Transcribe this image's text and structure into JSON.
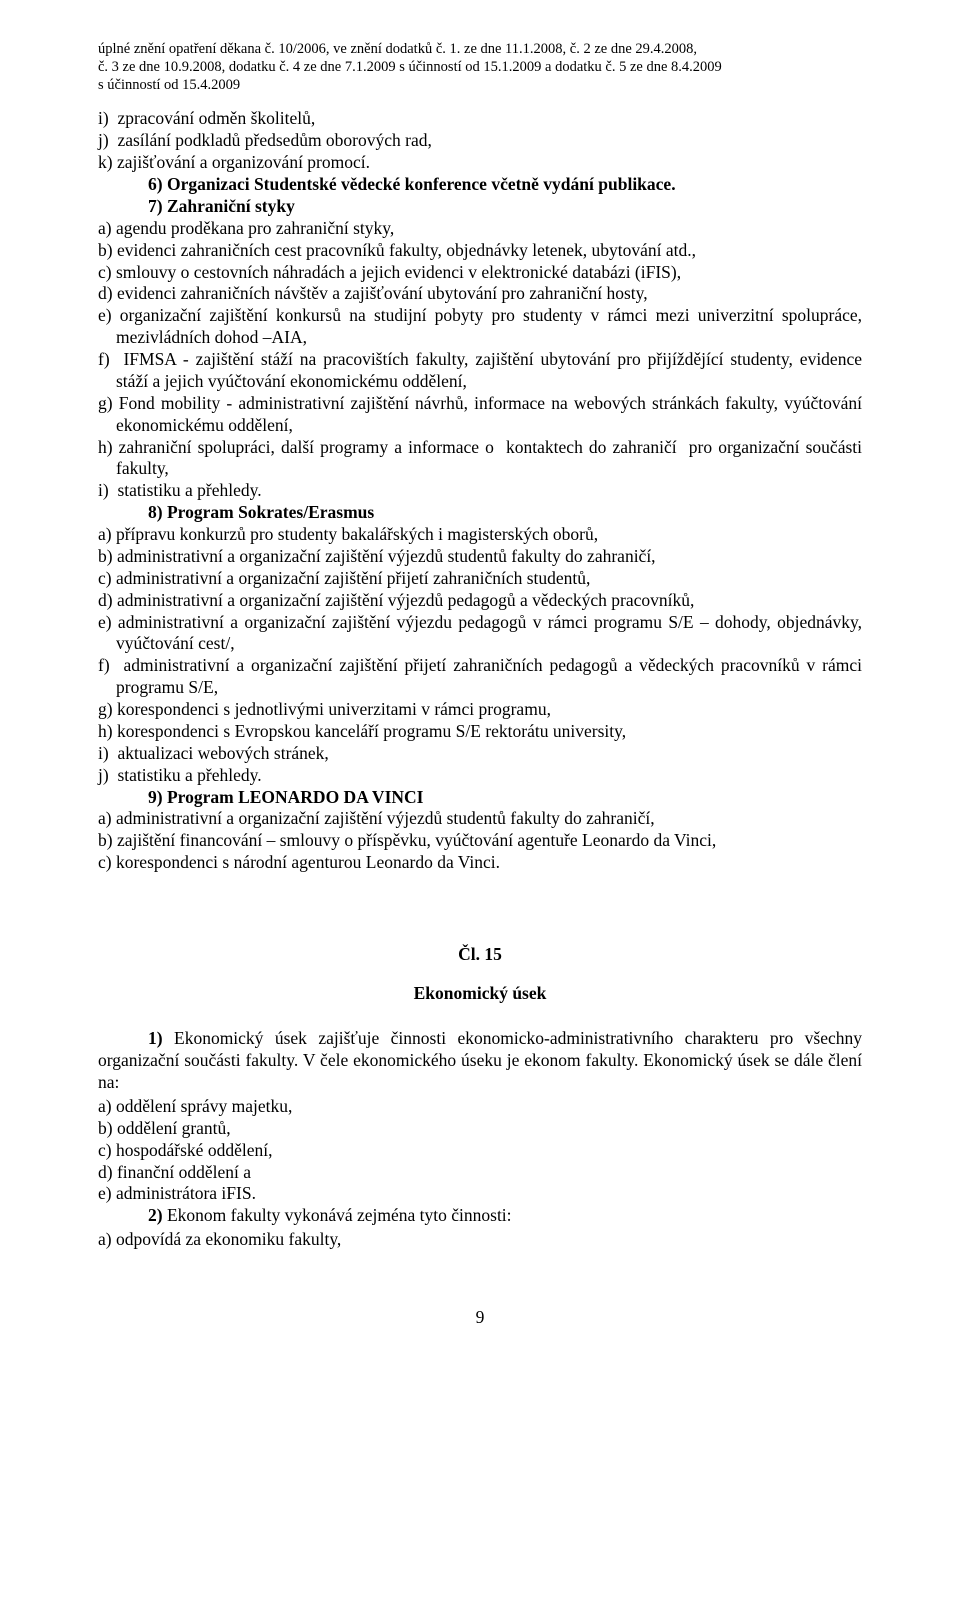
{
  "header": {
    "line1": "úplné znění opatření děkana č. 10/2006, ve znění dodatků č. 1. ze dne 11.1.2008, č. 2 ze dne 29.4.2008,",
    "line2": "č. 3 ze dne 10.9.2008, dodatku č. 4 ze dne 7.1.2009 s účinností od 15.1.2009 a dodatku č. 5 ze dne 8.4.2009",
    "line3": "s účinností od 15.4.2009"
  },
  "items_i": "i)  zpracování odměn školitelů,",
  "items_j": "j)  zasílání podkladů předsedům oborových rad,",
  "items_k": "k) zajišťování a organizování promocí.",
  "sec6_head": "6) Organizaci Studentské vědecké konference včetně vydání publikace.",
  "sec7_head": "7) Zahraniční styky",
  "sec7_a": "a) agendu proděkana pro zahraniční styky,",
  "sec7_b": "b) evidenci zahraničních cest pracovníků fakulty, objednávky letenek, ubytování atd.,",
  "sec7_c": "c) smlouvy o cestovních náhradách a jejich evidenci v elektronické databázi (iFIS),",
  "sec7_d": "d) evidenci zahraničních návštěv a zajišťování ubytování pro zahraniční hosty,",
  "sec7_e": "e) organizační zajištění konkursů na studijní pobyty pro studenty v rámci mezi univerzitní spolupráce, mezivládních dohod –AIA,",
  "sec7_f": "f)  IFMSA - zajištění stáží na pracovištích fakulty, zajištění ubytování pro přijíždějící studenty, evidence stáží a jejich vyúčtování ekonomickému oddělení,",
  "sec7_g": "g) Fond mobility - administrativní zajištění návrhů, informace na webových stránkách fakulty, vyúčtování ekonomickému oddělení,",
  "sec7_h": "h) zahraniční spolupráci, další programy a informace o  kontaktech do zahraničí  pro organizační součásti fakulty,",
  "sec7_i": "i)  statistiku a přehledy.",
  "sec8_head": "8) Program Sokrates/Erasmus",
  "sec8_a": "a) přípravu konkurzů pro studenty bakalářských i magisterských oborů,",
  "sec8_b": "b) administrativní a organizační zajištění výjezdů studentů fakulty do zahraničí,",
  "sec8_c": "c) administrativní a organizační zajištění přijetí zahraničních studentů,",
  "sec8_d": "d) administrativní a organizační zajištění výjezdů pedagogů a vědeckých pracovníků,",
  "sec8_e": "e) administrativní a organizační zajištění výjezdu pedagogů v rámci programu S/E – dohody, objednávky, vyúčtování cest/,",
  "sec8_f": "f)  administrativní a organizační zajištění přijetí zahraničních pedagogů a vědeckých pracovníků v rámci programu S/E,",
  "sec8_g": "g) korespondenci s jednotlivými univerzitami v rámci programu,",
  "sec8_h": "h) korespondenci s Evropskou kanceláří programu S/E rektorátu university,",
  "sec8_i": "i)  aktualizaci webových stránek,",
  "sec8_j": "j)  statistiku a přehledy.",
  "sec9_head": "9) Program LEONARDO DA VINCI",
  "sec9_a": "a) administrativní a organizační zajištění výjezdů studentů fakulty do zahraničí,",
  "sec9_b": "b) zajištění financování – smlouvy o příspěvku, vyúčtování agentuře Leonardo da Vinci,",
  "sec9_c": "c) korespondenci s národní agenturou Leonardo da Vinci.",
  "art15_num": "Čl. 15",
  "art15_title": "Ekonomický úsek",
  "art15_p1_lead": "1)",
  "art15_p1": "Ekonomický úsek zajišťuje činnosti ekonomicko-administrativního charakteru pro všechny organizační součásti fakulty. V čele ekonomického úseku je ekonom fakulty. Ekonomický úsek se dále člení na:",
  "art15_a": "a) oddělení správy majetku,",
  "art15_b": "b) oddělení grantů,",
  "art15_c": "c) hospodářské oddělení,",
  "art15_d": "d) finanční oddělení a",
  "art15_e": "e) administrátora iFIS.",
  "art15_p2_lead": "2)",
  "art15_p2_rest": " Ekonom fakulty vykonává zejména tyto činnosti:",
  "art15_2a": "a) odpovídá za ekonomiku fakulty,",
  "page_number": "9"
}
